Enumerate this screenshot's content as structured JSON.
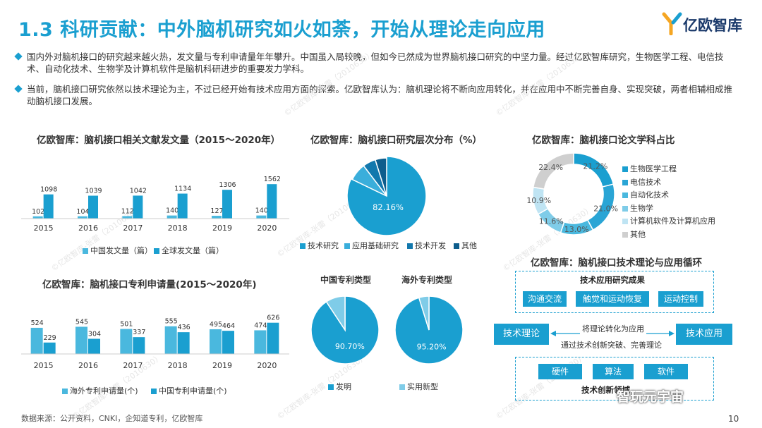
{
  "title": "1.3 科研贡献：中外脑机研究如火如荼，开始从理论走向应用",
  "logo": {
    "text": "亿欧智库"
  },
  "bullets": [
    "国内外对脑机接口的研究越来越火热，发文量与专利申请量年年攀升。中国虽入局较晚，但如今已然成为世界脑机接口研究的中坚力量。经过亿欧智库研究，生物医学工程、电信技术、自动化技术、生物学及计算机软件是脑机科研进步的重要发力学科。",
    "当前，脑机接口研究依然以技术理论为主，不过已经开始有技术应用方面的探索。亿欧智库认为：脑机理论将不断向应用转化，并在应用中不断完善自身、实现突破，两者相辅相成推动脑机接口发展。"
  ],
  "colors": {
    "accent": "#1a9fd0",
    "light": "#4ab8de",
    "dark": "#0f6fa0",
    "gray": "#d0d0d0"
  },
  "chart_data": [
    {
      "type": "bar",
      "title": "亿欧智库：脑机接口相关文献发文量（2015～2020年）",
      "categories": [
        "2015",
        "2016",
        "2017",
        "2018",
        "2019",
        "2020"
      ],
      "series": [
        {
          "name": "中国发文量（篇）",
          "values": [
            102,
            104,
            112,
            140,
            127,
            140
          ]
        },
        {
          "name": "全球发文量（篇）",
          "values": [
            1098,
            1039,
            1042,
            1134,
            1306,
            1562
          ]
        }
      ],
      "legend": "bottom"
    },
    {
      "type": "pie",
      "title": "亿欧智库：脑机接口研究层次分布（%）",
      "labels": [
        "技术研究",
        "应用基础研究",
        "技术开发",
        "其他"
      ],
      "values": [
        82.16,
        7.5,
        5.5,
        4.84
      ],
      "value_labels": [
        "82.16%",
        "",
        "",
        ""
      ],
      "legend": "bottom"
    },
    {
      "type": "pie",
      "title": "亿欧智库：脑机接口论文学科占比",
      "labels": [
        "生物医学工程",
        "电信技术",
        "自动化技术",
        "生物学",
        "计算机软件及计算机应用",
        "其他"
      ],
      "values": [
        21.2,
        21.0,
        13.0,
        11.6,
        10.9,
        22.4
      ],
      "value_labels": [
        "21.2%",
        "21.0%",
        "13.0%",
        "11.6%",
        "10.9%",
        "22.4%"
      ],
      "legend": "right"
    },
    {
      "type": "bar",
      "title": "亿欧智库：脑机接口专利申请量(2015～2020年)",
      "categories": [
        "2015",
        "2016",
        "2017",
        "2018",
        "2019",
        "2020"
      ],
      "series": [
        {
          "name": "海外专利申请量(个)",
          "values": [
            524,
            545,
            501,
            555,
            495,
            474
          ]
        },
        {
          "name": "中国专利申请量(个)",
          "values": [
            229,
            304,
            337,
            436,
            464,
            626
          ]
        }
      ],
      "legend": "bottom"
    },
    {
      "type": "pie",
      "title": "中国专利类型",
      "labels": [
        "发明",
        "实用新型"
      ],
      "values": [
        90.7,
        9.3
      ],
      "value_labels": [
        "90.70%",
        ""
      ]
    },
    {
      "type": "pie",
      "title": "海外专利类型",
      "labels": [
        "发明",
        "实用新型"
      ],
      "values": [
        95.2,
        4.8
      ],
      "value_labels": [
        "95.20%",
        ""
      ]
    }
  ],
  "patent_legend": [
    "发明",
    "实用新型"
  ],
  "cycle": {
    "title": "亿欧智库：脑机接口技术理论与应用循环",
    "top_label": "技术应用研究成果",
    "top_items": [
      "沟通交流",
      "触觉和运动恢复",
      "运动控制"
    ],
    "left": "技术理论",
    "right": "技术应用",
    "arrow_top": "将理论转化为应用",
    "arrow_bottom": "通过技术创新突破、完善理论",
    "bottom_items": [
      "硬件",
      "算法",
      "软件"
    ],
    "bottom_label": "技术创新领域"
  },
  "footer": {
    "source": "数据来源：公开资料，CNKI，企知道专利，亿欧智库",
    "page": "10"
  },
  "wechat": "智玩元宇宙"
}
